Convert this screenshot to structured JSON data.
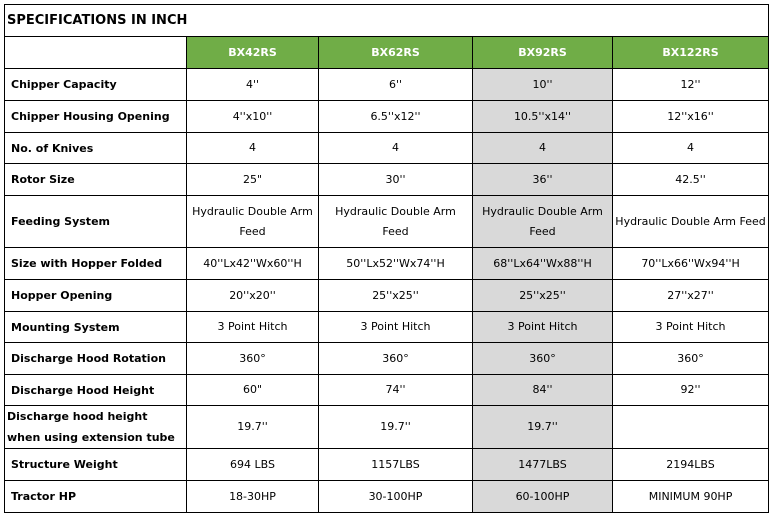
{
  "title": "SPECIFICATIONS IN INCH",
  "colors": {
    "header_bg": "#70ad47",
    "header_text": "#ffffff",
    "highlight_column_bg": "#d9d9d9"
  },
  "highlight_column": "BX92RS",
  "models": [
    "BX42RS",
    "BX62RS",
    "BX92RS",
    "BX122RS"
  ],
  "rows": [
    {
      "label": "Chipper Capacity",
      "values": [
        "4''",
        "6''",
        "10''",
        "12''"
      ]
    },
    {
      "label": "Chipper Housing Opening",
      "values": [
        "4''x10''",
        "6.5''x12''",
        "10.5''x14''",
        "12''x16''"
      ]
    },
    {
      "label": "No. of Knives",
      "values": [
        "4",
        "4",
        "4",
        "4"
      ]
    },
    {
      "label": "Rotor Size",
      "values": [
        "25\"",
        "30''",
        "36''",
        "42.5''"
      ]
    },
    {
      "label": "Feeding System",
      "values": [
        "Hydraulic Double Arm Feed",
        "Hydraulic Double Arm Feed",
        "Hydraulic Double Arm Feed",
        "Hydraulic Double Arm Feed"
      ]
    },
    {
      "label": "Size with Hopper Folded",
      "values": [
        "40''Lx42''Wx60''H",
        "50''Lx52''Wx74''H",
        "68''Lx64''Wx88''H",
        "70''Lx66''Wx94''H"
      ]
    },
    {
      "label": "Hopper Opening",
      "values": [
        "20''x20''",
        "25''x25''",
        "25''x25''",
        "27''x27''"
      ]
    },
    {
      "label": "Mounting System",
      "values": [
        "3 Point Hitch",
        "3 Point Hitch",
        "3 Point Hitch",
        "3 Point Hitch"
      ]
    },
    {
      "label": "Discharge Hood Rotation",
      "values": [
        "360°",
        "360°",
        "360°",
        "360°"
      ]
    },
    {
      "label": "Discharge Hood Height",
      "values": [
        "60\"",
        "74''",
        "84''",
        "92''"
      ]
    },
    {
      "label": "Discharge hood height when using extension tube",
      "values": [
        "19.7''",
        "19.7''",
        "19.7''",
        ""
      ]
    },
    {
      "label": "Structure Weight",
      "values": [
        "694 LBS",
        "1157LBS",
        "1477LBS",
        "2194LBS"
      ]
    },
    {
      "label": "Tractor HP",
      "values": [
        "18-30HP",
        "30-100HP",
        "60-100HP",
        "MINIMUM 90HP"
      ]
    }
  ]
}
